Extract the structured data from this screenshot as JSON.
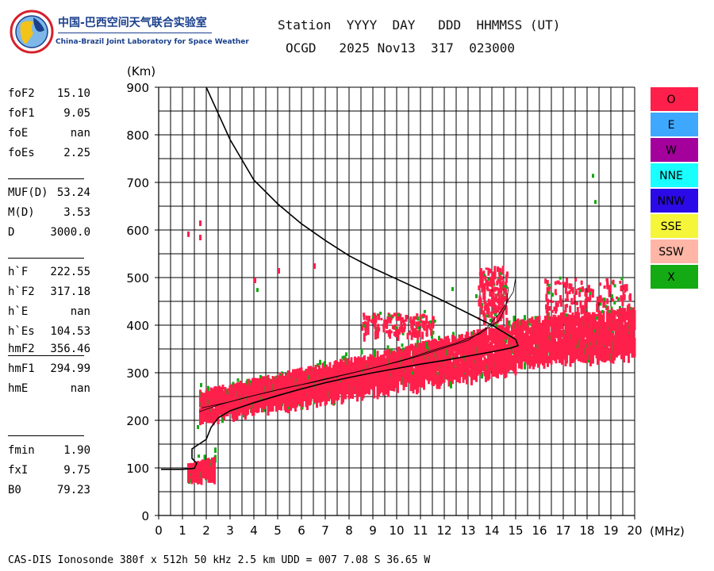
{
  "logo": {
    "cn_text": "中国-巴西空间天气联合实验室",
    "en_text": "China-Brazil Joint Laboratory for Space Weather",
    "colors": {
      "blue": "#1a3f8c",
      "red": "#d6202a",
      "yellow": "#f3c31a"
    }
  },
  "header": {
    "labels_line": "Station  YYYY  DAY   DDD  HHMMSS (UT)",
    "values_line": "OCGD   2025 Nov13  317  023000"
  },
  "parameters": {
    "group1": [
      {
        "name": "foF2",
        "value": "15.10"
      },
      {
        "name": "foF1",
        "value": "9.05"
      },
      {
        "name": "foE",
        "value": "nan"
      },
      {
        "name": "foEs",
        "value": "2.25"
      }
    ],
    "group2": [
      {
        "name": "MUF(D)",
        "value": "53.24"
      },
      {
        "name": "M(D)",
        "value": "3.53"
      },
      {
        "name": "D",
        "value": "3000.0"
      }
    ],
    "group3": [
      {
        "name": "h`F",
        "value": "222.55"
      },
      {
        "name": "h`F2",
        "value": "317.18"
      },
      {
        "name": "h`E",
        "value": "nan"
      },
      {
        "name": "h`Es",
        "value": "104.53"
      }
    ],
    "group4": [
      {
        "name": "hmF2",
        "value": "356.46"
      },
      {
        "name": "hmF1",
        "value": "294.99"
      },
      {
        "name": "hmE",
        "value": "nan"
      }
    ],
    "group5": [
      {
        "name": "fmin",
        "value": "1.90"
      },
      {
        "name": "fxI",
        "value": "9.75"
      },
      {
        "name": "B0",
        "value": "79.23"
      }
    ]
  },
  "legend": [
    {
      "label": "O",
      "color": "#ff1f4b"
    },
    {
      "label": "E",
      "color": "#3ea8ff"
    },
    {
      "label": "W",
      "color": "#a3009c"
    },
    {
      "label": "NNE",
      "color": "#19ffff"
    },
    {
      "label": "NNW",
      "color": "#2a0ae6"
    },
    {
      "label": "SSE",
      "color": "#f5f53a"
    },
    {
      "label": "SSW",
      "color": "#ffb6a6"
    },
    {
      "label": "X",
      "color": "#14aa14"
    }
  ],
  "footer": "CAS-DIS Ionosonde 380f x 512h 50 kHz 2.5 km UDD = 007 7.08 S 36.65 W",
  "chart_data": {
    "type": "scatter",
    "xlabel": "(MHz)",
    "ylabel": "(Km)",
    "xlim": [
      0,
      20
    ],
    "ylim": [
      0,
      900
    ],
    "x_ticks": [
      0,
      1,
      2,
      3,
      4,
      5,
      6,
      7,
      8,
      9,
      10,
      11,
      12,
      13,
      14,
      15,
      16,
      17,
      18,
      19,
      20
    ],
    "y_ticks": [
      0,
      100,
      200,
      300,
      400,
      500,
      600,
      700,
      800,
      900
    ],
    "grid": true,
    "legend_position": "right",
    "scaled_profile": {
      "name": "profile",
      "color": "#000000",
      "points": [
        [
          0.1,
          97
        ],
        [
          1.0,
          97
        ],
        [
          1.5,
          99
        ],
        [
          1.6,
          110
        ],
        [
          1.4,
          120
        ],
        [
          1.4,
          140
        ],
        [
          1.7,
          150
        ],
        [
          2.0,
          160
        ],
        [
          2.2,
          185
        ],
        [
          2.5,
          205
        ],
        [
          3.0,
          220
        ],
        [
          4.0,
          237
        ],
        [
          5.0,
          252
        ],
        [
          6.0,
          266
        ],
        [
          7.0,
          279
        ],
        [
          8.0,
          290
        ],
        [
          9.0,
          300
        ],
        [
          10.0,
          309
        ],
        [
          11.0,
          318
        ],
        [
          12.0,
          326
        ],
        [
          13.0,
          335
        ],
        [
          14.0,
          344
        ],
        [
          14.8,
          352
        ],
        [
          15.1,
          357
        ],
        [
          15.0,
          370
        ],
        [
          14.5,
          385
        ],
        [
          14.0,
          400
        ],
        [
          13.0,
          425
        ],
        [
          12.0,
          450
        ],
        [
          11.0,
          474
        ],
        [
          10.0,
          497
        ],
        [
          9.0,
          520
        ],
        [
          8.0,
          546
        ],
        [
          7.0,
          578
        ],
        [
          6.0,
          613
        ],
        [
          5.0,
          655
        ],
        [
          4.0,
          705
        ],
        [
          3.0,
          790
        ],
        [
          2.0,
          900
        ]
      ]
    },
    "trace_lines": [
      {
        "color": "#000000",
        "points": [
          [
            1.7,
            218
          ],
          [
            2.5,
            232
          ],
          [
            3.5,
            246
          ],
          [
            4.5,
            258
          ],
          [
            5.5,
            270
          ],
          [
            6.5,
            280
          ],
          [
            7.5,
            292
          ],
          [
            8.5,
            304
          ],
          [
            9.5,
            316
          ],
          [
            10.5,
            330
          ],
          [
            11.5,
            347
          ],
          [
            12.5,
            362
          ],
          [
            13.5,
            382
          ],
          [
            14.3,
            410
          ],
          [
            14.6,
            440
          ],
          [
            14.7,
            480
          ]
        ]
      },
      {
        "color": "#000000",
        "points": [
          [
            1.8,
            226
          ],
          [
            3.0,
            239
          ],
          [
            4.0,
            252
          ],
          [
            5.0,
            264
          ],
          [
            6.0,
            275
          ],
          [
            7.0,
            287
          ],
          [
            8.0,
            298
          ],
          [
            9.0,
            310
          ],
          [
            10.0,
            322
          ],
          [
            11.0,
            336
          ],
          [
            12.0,
            352
          ],
          [
            13.0,
            368
          ],
          [
            13.8,
            395
          ],
          [
            14.4,
            430
          ],
          [
            14.9,
            470
          ],
          [
            15.0,
            500
          ]
        ]
      }
    ],
    "echo_bands": [
      {
        "color": "#ff1f4b",
        "x_from": 1.7,
        "x_to": 15.0,
        "h_low_start": 215,
        "h_low_end": 320,
        "h_high_start": 265,
        "h_high_end": 410
      },
      {
        "color": "#ff1f4b",
        "x_from": 15.0,
        "x_to": 20.0,
        "h_low_start": 330,
        "h_low_end": 350,
        "h_high_start": 415,
        "h_high_end": 440
      },
      {
        "color": "#ff1f4b",
        "x_from": 1.2,
        "x_to": 2.3,
        "h_low_start": 95,
        "h_low_end": 97,
        "h_high_start": 110,
        "h_high_end": 125
      }
    ],
    "echo_clusters": [
      {
        "color": "#ff1f4b",
        "cx": 14.0,
        "cy": 470,
        "rx": 0.6,
        "ry": 55
      },
      {
        "color": "#ff1f4b",
        "cx": 10.0,
        "cy": 405,
        "rx": 1.5,
        "ry": 22
      },
      {
        "color": "#ff1f4b",
        "cx": 18.0,
        "cy": 460,
        "rx": 1.8,
        "ry": 40
      }
    ],
    "o_points": [
      [
        1.2,
        597
      ],
      [
        1.7,
        620
      ],
      [
        1.7,
        590
      ],
      [
        4.0,
        500
      ],
      [
        5.0,
        520
      ],
      [
        6.5,
        530
      ]
    ],
    "x_points": [
      [
        18.2,
        718
      ],
      [
        18.3,
        663
      ],
      [
        4.1,
        478
      ],
      [
        1.6,
        190
      ],
      [
        12.3,
        480
      ],
      [
        13.3,
        465
      ],
      [
        19.0,
        465
      ],
      [
        16.5,
        468
      ]
    ]
  }
}
